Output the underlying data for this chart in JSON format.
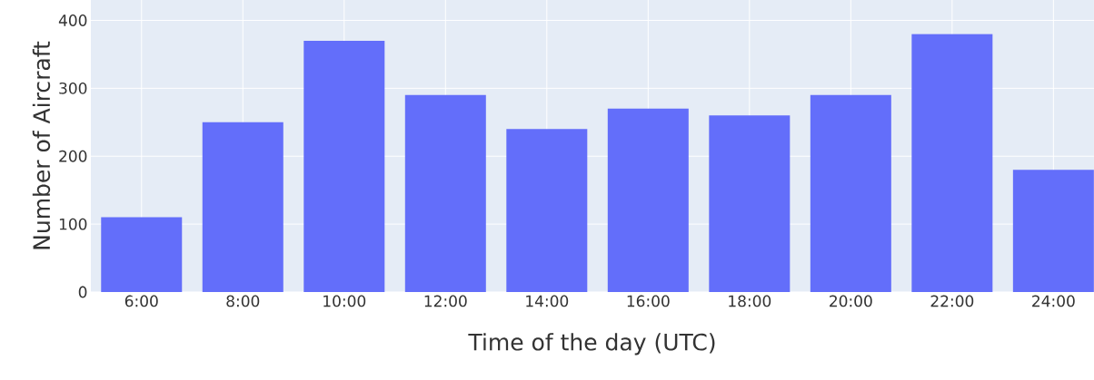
{
  "chart_data": {
    "type": "bar",
    "xlabel": "Time of the day (UTC)",
    "ylabel": "Number of Aircraft",
    "categories": [
      "6:00",
      "8:00",
      "10:00",
      "12:00",
      "14:00",
      "16:00",
      "18:00",
      "20:00",
      "22:00",
      "24:00"
    ],
    "values": [
      110,
      250,
      370,
      290,
      240,
      270,
      260,
      290,
      380,
      180
    ],
    "color": "#636efa",
    "ylim": [
      0,
      430
    ],
    "yticks": [
      0,
      100,
      200,
      300,
      400
    ],
    "grid": true
  }
}
